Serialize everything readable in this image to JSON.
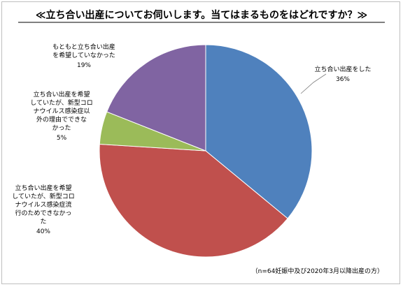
{
  "chart_data": {
    "type": "pie",
    "title": "≪立ち合い出産についてお伺いします。当てはまるものをはどれですか？≫",
    "note": "（n=64妊娠中及び2020年3月以降出産の方）",
    "start_angle_deg": 0,
    "direction": "clockwise",
    "slices": [
      {
        "label_lines": [
          "立ち合い出産をした"
        ],
        "value": 36,
        "pct_label": "36%",
        "color": "#4f81bd"
      },
      {
        "label_lines": [
          "立ち合い出産を希望",
          "していたが、新型コロ",
          "ナウイルス感染症流",
          "行のためできなかっ",
          "た"
        ],
        "value": 40,
        "pct_label": "40%",
        "color": "#c0504d"
      },
      {
        "label_lines": [
          "立ち合い出産を希望",
          "していたが、新型コロ",
          "ナウイルス感染症以",
          "外の理由でできな",
          "かった"
        ],
        "value": 5,
        "pct_label": "5%",
        "color": "#9bbb59"
      },
      {
        "label_lines": [
          "もともと立ち合い出産",
          "を希望していなかった"
        ],
        "value": 19,
        "pct_label": "19%",
        "color": "#8064a2"
      }
    ]
  }
}
